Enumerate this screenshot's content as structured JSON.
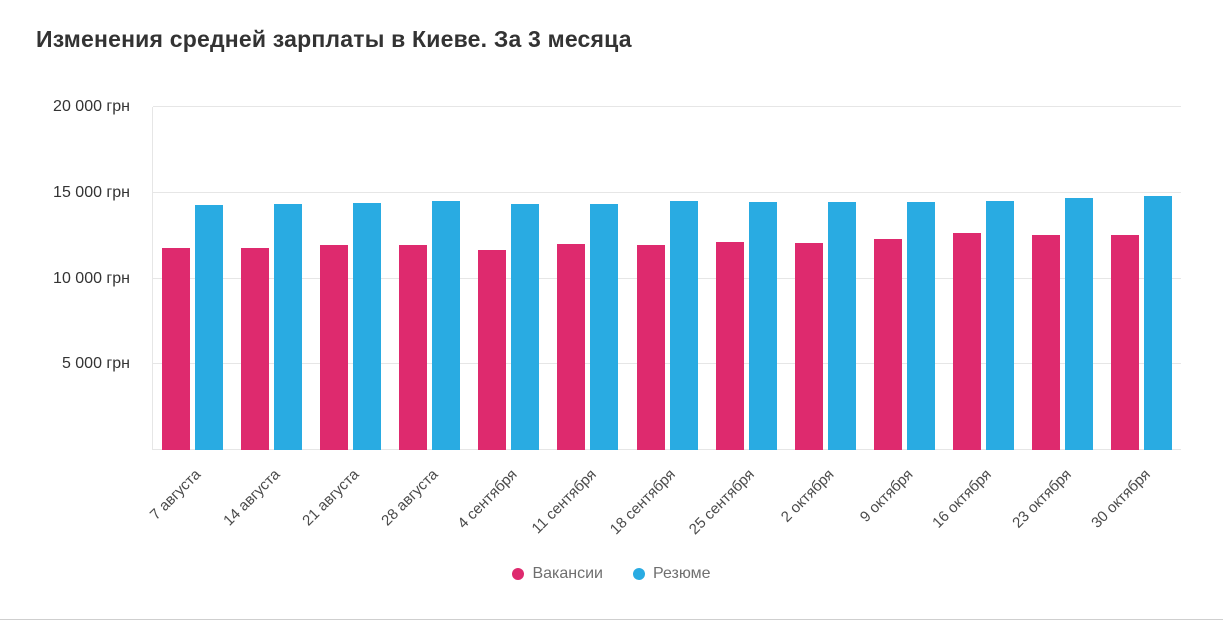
{
  "title": "Изменения средней зарплаты в Киеве. За 3 месяца",
  "chart_data": {
    "type": "bar",
    "title": "Изменения средней зарплаты в Киеве. За 3 месяца",
    "categories": [
      "7 августа",
      "14 августа",
      "21 августа",
      "28 августа",
      "4 сентября",
      "11 сентября",
      "18 сентября",
      "25 сентября",
      "2 октября",
      "9 октября",
      "16 октября",
      "23 октября",
      "30 октября"
    ],
    "series": [
      {
        "key": "vacancies",
        "name": "Вакансии",
        "color": "#de2a6e",
        "values": [
          11800,
          11800,
          11950,
          11950,
          11650,
          12000,
          11950,
          12150,
          12050,
          12300,
          12650,
          12550,
          12550
        ]
      },
      {
        "key": "resumes",
        "name": "Резюме",
        "color": "#29abe2",
        "values": [
          14300,
          14350,
          14400,
          14500,
          14350,
          14350,
          14500,
          14450,
          14450,
          14450,
          14500,
          14700,
          14800
        ]
      }
    ],
    "ylim": [
      0,
      20000
    ],
    "ytick_values": [
      5000,
      10000,
      15000,
      20000
    ],
    "ytick_labels": [
      "5 000 грн",
      "10 000 грн",
      "15 000 грн",
      "20 000 грн"
    ],
    "unit": "грн",
    "grid": true,
    "legend_position": "bottom"
  }
}
